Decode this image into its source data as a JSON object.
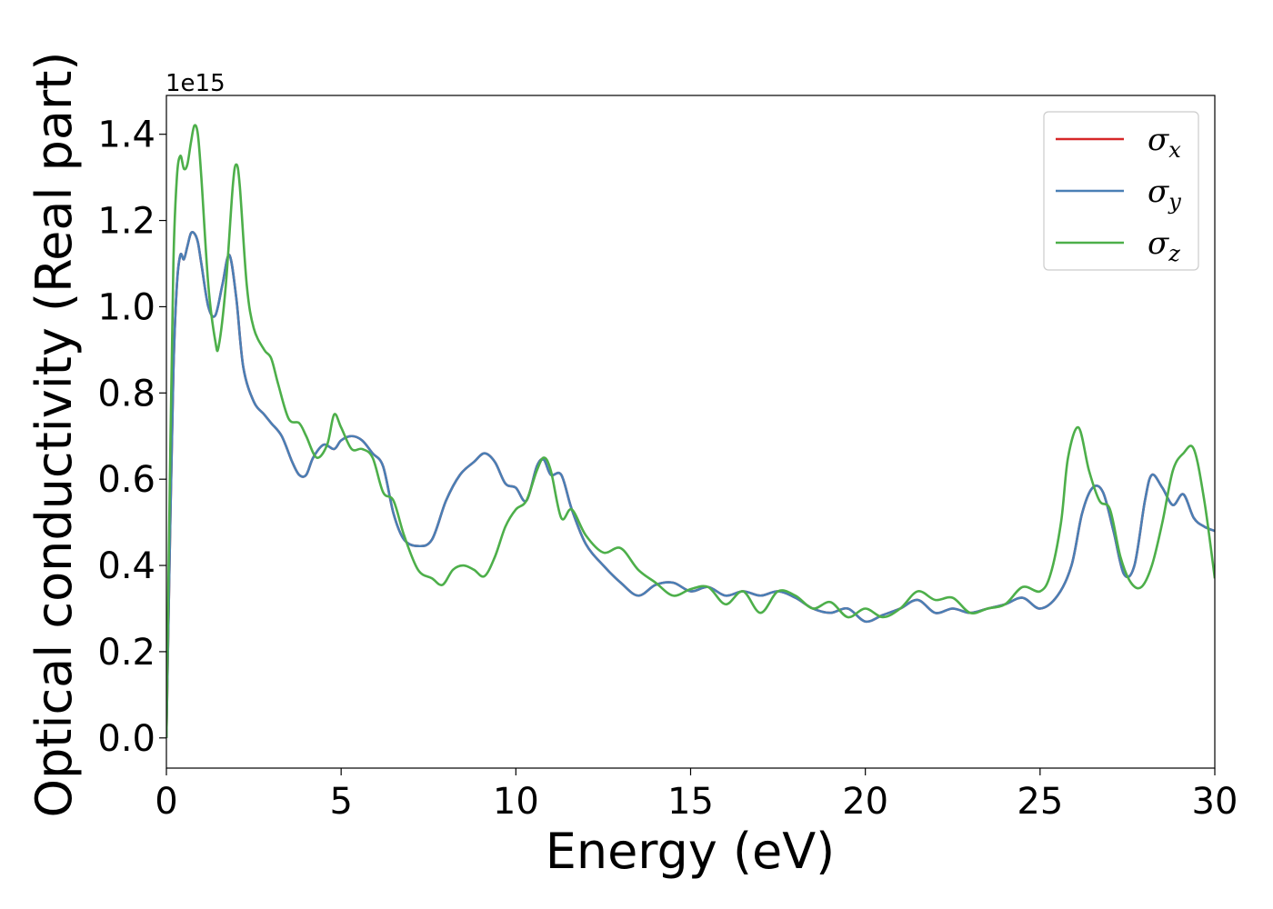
{
  "chart_data": {
    "type": "line",
    "xlabel": "Energy (eV)",
    "ylabel": "Optical conductivity (Real part)",
    "y_offset_label": "1e15",
    "xlim": [
      0,
      30
    ],
    "ylim": [
      -0.07,
      1.49
    ],
    "x_ticks": [
      0,
      5,
      10,
      15,
      20,
      25,
      30
    ],
    "x_tick_labels": [
      "0",
      "5",
      "10",
      "15",
      "20",
      "25",
      "30"
    ],
    "y_ticks": [
      0.0,
      0.2,
      0.4,
      0.6,
      0.8,
      1.0,
      1.2,
      1.4
    ],
    "y_tick_labels": [
      "0.0",
      "0.2",
      "0.4",
      "0.6",
      "0.8",
      "1.0",
      "1.2",
      "1.4"
    ],
    "grid": false,
    "legend_position": "top-right",
    "series": [
      {
        "name": "σx",
        "name_base": "σ",
        "name_sub": "x",
        "color": "#d62728",
        "x": [
          0,
          0.1,
          0.2,
          0.3,
          0.4,
          0.5,
          0.6,
          0.7,
          0.8,
          0.9,
          1.0,
          1.2,
          1.4,
          1.6,
          1.8,
          2.0,
          2.2,
          2.5,
          2.8,
          3.0,
          3.3,
          3.6,
          3.8,
          4.0,
          4.2,
          4.5,
          4.8,
          5.0,
          5.3,
          5.6,
          5.9,
          6.2,
          6.5,
          6.8,
          7.2,
          7.6,
          8.0,
          8.4,
          8.8,
          9.1,
          9.4,
          9.7,
          10.0,
          10.3,
          10.6,
          10.8,
          11.0,
          11.3,
          11.6,
          12.0,
          12.5,
          13.0,
          13.5,
          14.0,
          14.5,
          15.0,
          15.5,
          16.0,
          16.5,
          17.0,
          17.5,
          18.0,
          18.5,
          19.0,
          19.5,
          20.0,
          20.5,
          21.0,
          21.5,
          22.0,
          22.5,
          23.0,
          23.5,
          24.0,
          24.5,
          25.0,
          25.5,
          25.9,
          26.2,
          26.5,
          26.8,
          27.1,
          27.4,
          27.7,
          28.0,
          28.2,
          28.5,
          28.8,
          29.1,
          29.4,
          29.7,
          30.0
        ],
        "values": [
          0.0,
          0.45,
          0.85,
          1.05,
          1.12,
          1.11,
          1.14,
          1.17,
          1.17,
          1.15,
          1.1,
          1.0,
          0.98,
          1.05,
          1.12,
          1.02,
          0.86,
          0.78,
          0.75,
          0.73,
          0.7,
          0.64,
          0.61,
          0.61,
          0.65,
          0.68,
          0.67,
          0.69,
          0.7,
          0.69,
          0.66,
          0.63,
          0.52,
          0.46,
          0.445,
          0.46,
          0.55,
          0.61,
          0.64,
          0.66,
          0.64,
          0.59,
          0.58,
          0.55,
          0.63,
          0.645,
          0.61,
          0.61,
          0.53,
          0.45,
          0.4,
          0.36,
          0.33,
          0.355,
          0.36,
          0.34,
          0.35,
          0.33,
          0.34,
          0.33,
          0.34,
          0.325,
          0.3,
          0.29,
          0.3,
          0.27,
          0.285,
          0.3,
          0.32,
          0.29,
          0.3,
          0.29,
          0.3,
          0.31,
          0.325,
          0.3,
          0.33,
          0.4,
          0.52,
          0.58,
          0.57,
          0.48,
          0.38,
          0.4,
          0.55,
          0.61,
          0.58,
          0.54,
          0.565,
          0.51,
          0.49,
          0.48
        ]
      },
      {
        "name": "σy",
        "name_base": "σ",
        "name_sub": "y",
        "color": "#4a7fb5",
        "x": [
          0,
          0.1,
          0.2,
          0.3,
          0.4,
          0.5,
          0.6,
          0.7,
          0.8,
          0.9,
          1.0,
          1.2,
          1.4,
          1.6,
          1.8,
          2.0,
          2.2,
          2.5,
          2.8,
          3.0,
          3.3,
          3.6,
          3.8,
          4.0,
          4.2,
          4.5,
          4.8,
          5.0,
          5.3,
          5.6,
          5.9,
          6.2,
          6.5,
          6.8,
          7.2,
          7.6,
          8.0,
          8.4,
          8.8,
          9.1,
          9.4,
          9.7,
          10.0,
          10.3,
          10.6,
          10.8,
          11.0,
          11.3,
          11.6,
          12.0,
          12.5,
          13.0,
          13.5,
          14.0,
          14.5,
          15.0,
          15.5,
          16.0,
          16.5,
          17.0,
          17.5,
          18.0,
          18.5,
          19.0,
          19.5,
          20.0,
          20.5,
          21.0,
          21.5,
          22.0,
          22.5,
          23.0,
          23.5,
          24.0,
          24.5,
          25.0,
          25.5,
          25.9,
          26.2,
          26.5,
          26.8,
          27.1,
          27.4,
          27.7,
          28.0,
          28.2,
          28.5,
          28.8,
          29.1,
          29.4,
          29.7,
          30.0
        ],
        "values": [
          0.0,
          0.45,
          0.85,
          1.05,
          1.12,
          1.11,
          1.14,
          1.17,
          1.17,
          1.15,
          1.1,
          1.0,
          0.98,
          1.05,
          1.12,
          1.02,
          0.86,
          0.78,
          0.75,
          0.73,
          0.7,
          0.64,
          0.61,
          0.61,
          0.65,
          0.68,
          0.67,
          0.69,
          0.7,
          0.69,
          0.66,
          0.63,
          0.52,
          0.46,
          0.445,
          0.46,
          0.55,
          0.61,
          0.64,
          0.66,
          0.64,
          0.59,
          0.58,
          0.55,
          0.63,
          0.645,
          0.61,
          0.61,
          0.53,
          0.45,
          0.4,
          0.36,
          0.33,
          0.355,
          0.36,
          0.34,
          0.35,
          0.33,
          0.34,
          0.33,
          0.34,
          0.325,
          0.3,
          0.29,
          0.3,
          0.27,
          0.285,
          0.3,
          0.32,
          0.29,
          0.3,
          0.29,
          0.3,
          0.31,
          0.325,
          0.3,
          0.33,
          0.4,
          0.52,
          0.58,
          0.57,
          0.48,
          0.38,
          0.4,
          0.55,
          0.61,
          0.58,
          0.54,
          0.565,
          0.51,
          0.49,
          0.48
        ]
      },
      {
        "name": "σz",
        "name_base": "σ",
        "name_sub": "z",
        "color": "#4daf4a",
        "x": [
          0,
          0.1,
          0.2,
          0.3,
          0.4,
          0.5,
          0.6,
          0.7,
          0.8,
          0.9,
          1.0,
          1.2,
          1.4,
          1.5,
          1.7,
          1.9,
          2.0,
          2.1,
          2.3,
          2.5,
          2.8,
          3.0,
          3.2,
          3.5,
          3.8,
          4.0,
          4.3,
          4.6,
          4.8,
          5.0,
          5.3,
          5.6,
          5.9,
          6.2,
          6.5,
          6.8,
          7.2,
          7.6,
          7.9,
          8.2,
          8.5,
          8.8,
          9.1,
          9.4,
          9.7,
          10.0,
          10.3,
          10.6,
          10.8,
          11.0,
          11.3,
          11.6,
          12.0,
          12.5,
          13.0,
          13.5,
          14.0,
          14.5,
          15.0,
          15.5,
          16.0,
          16.5,
          17.0,
          17.5,
          18.0,
          18.5,
          19.0,
          19.5,
          20.0,
          20.5,
          21.0,
          21.5,
          22.0,
          22.5,
          23.0,
          23.5,
          24.0,
          24.5,
          25.0,
          25.3,
          25.6,
          25.8,
          26.1,
          26.4,
          26.7,
          27.0,
          27.3,
          27.6,
          27.9,
          28.2,
          28.5,
          28.8,
          29.1,
          29.4,
          29.7,
          30.0
        ],
        "values": [
          0.0,
          0.6,
          1.1,
          1.3,
          1.35,
          1.32,
          1.33,
          1.38,
          1.42,
          1.4,
          1.3,
          1.05,
          0.92,
          0.91,
          1.05,
          1.28,
          1.33,
          1.28,
          1.05,
          0.95,
          0.9,
          0.88,
          0.82,
          0.74,
          0.73,
          0.7,
          0.65,
          0.68,
          0.75,
          0.72,
          0.67,
          0.67,
          0.65,
          0.57,
          0.55,
          0.47,
          0.39,
          0.37,
          0.355,
          0.39,
          0.4,
          0.39,
          0.375,
          0.42,
          0.49,
          0.53,
          0.55,
          0.62,
          0.65,
          0.62,
          0.51,
          0.53,
          0.47,
          0.43,
          0.44,
          0.39,
          0.36,
          0.33,
          0.345,
          0.35,
          0.31,
          0.34,
          0.29,
          0.34,
          0.33,
          0.3,
          0.315,
          0.28,
          0.3,
          0.28,
          0.3,
          0.34,
          0.32,
          0.325,
          0.29,
          0.3,
          0.31,
          0.35,
          0.34,
          0.38,
          0.5,
          0.65,
          0.72,
          0.62,
          0.55,
          0.53,
          0.42,
          0.36,
          0.35,
          0.4,
          0.5,
          0.62,
          0.66,
          0.67,
          0.55,
          0.37
        ]
      }
    ]
  }
}
